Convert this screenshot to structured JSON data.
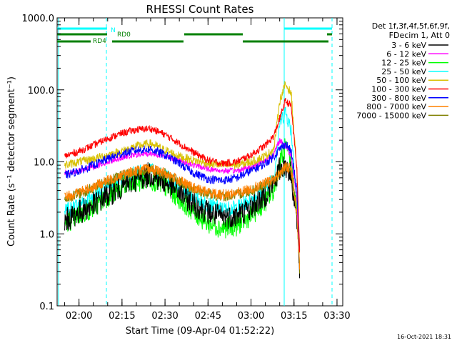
{
  "chart_data": {
    "type": "line",
    "title": "RHESSI Count Rates",
    "xlabel": "Start Time (09-Apr-04 01:52:22)",
    "ylabel": "Count Rate (s⁻¹ detector segment⁻¹)",
    "ylog": true,
    "ylim": [
      0.1,
      1000
    ],
    "xlim": [
      "01:52:22",
      "03:32:00"
    ],
    "x_ticks": [
      "02:00",
      "02:15",
      "02:30",
      "02:45",
      "03:00",
      "03:15",
      "03:30"
    ],
    "y_ticks": [
      "0.1",
      "1.0",
      "10.0",
      "100.0",
      "1000.0"
    ],
    "grid": false,
    "legend_position": "right",
    "legend_header": [
      "Det 1f,3f,4f,5f,6f,9f,",
      "FDecim 1, Att 0"
    ],
    "x": [
      "01:55",
      "02:00",
      "02:05",
      "02:10",
      "02:15",
      "02:20",
      "02:25",
      "02:30",
      "02:35",
      "02:40",
      "02:45",
      "02:50",
      "02:55",
      "03:00",
      "03:05",
      "03:08",
      "03:10",
      "03:12",
      "03:14",
      "03:16",
      "03:17"
    ],
    "series": [
      {
        "name": "3 - 6 keV",
        "color": "#000000",
        "values": [
          1.5,
          2.0,
          2.5,
          3.5,
          4.5,
          5.8,
          6.8,
          5.2,
          3.8,
          2.6,
          2.0,
          1.7,
          1.8,
          2.3,
          3.5,
          5.0,
          8.0,
          9.0,
          6.5,
          1.5,
          0.3
        ]
      },
      {
        "name": "6 - 12 keV",
        "color": "#ff00ff",
        "values": [
          7.0,
          7.5,
          8.5,
          10.0,
          11.5,
          12.5,
          13.0,
          12.0,
          10.5,
          9.0,
          8.0,
          7.5,
          7.5,
          8.5,
          10.5,
          13.0,
          20.0,
          17.0,
          12.0,
          3.0,
          0.5
        ]
      },
      {
        "name": "12 - 25 keV",
        "color": "#00ff00",
        "values": [
          1.4,
          1.8,
          2.3,
          3.3,
          4.3,
          5.2,
          5.8,
          4.5,
          3.1,
          2.0,
          1.4,
          1.2,
          1.3,
          1.8,
          2.8,
          4.0,
          10.0,
          16.0,
          9.0,
          2.0,
          0.3
        ]
      },
      {
        "name": "25 - 50 keV",
        "color": "#00ffff",
        "values": [
          2.0,
          2.6,
          3.4,
          4.6,
          5.9,
          7.0,
          7.6,
          6.3,
          4.6,
          3.3,
          2.6,
          2.2,
          2.3,
          3.0,
          4.4,
          6.0,
          35.0,
          50.0,
          28.0,
          3.0,
          0.3
        ]
      },
      {
        "name": "50 - 100 keV",
        "color": "#d8c000",
        "values": [
          9.0,
          10.0,
          11.0,
          12.5,
          14.0,
          16.5,
          18.0,
          14.5,
          12.0,
          10.5,
          9.5,
          9.0,
          9.0,
          10.0,
          12.0,
          15.0,
          70.0,
          120.0,
          90.0,
          8.0,
          0.5
        ]
      },
      {
        "name": "100 - 300 keV",
        "color": "#ff0000",
        "values": [
          12.0,
          14.0,
          17.0,
          21.0,
          25.0,
          28.0,
          29.0,
          24.0,
          18.0,
          13.5,
          10.5,
          9.5,
          10.0,
          12.5,
          17.0,
          23.0,
          40.0,
          70.0,
          60.0,
          8.0,
          0.5
        ]
      },
      {
        "name": "300 - 800 keV",
        "color": "#0000ff",
        "values": [
          6.5,
          7.5,
          9.0,
          11.0,
          13.0,
          14.5,
          15.0,
          12.5,
          9.5,
          7.0,
          5.8,
          5.5,
          6.0,
          7.5,
          9.5,
          12.0,
          15.0,
          18.0,
          14.0,
          4.0,
          0.5
        ]
      },
      {
        "name": "800 - 7000 keV",
        "color": "#ff8000",
        "values": [
          3.2,
          3.8,
          4.5,
          5.5,
          6.6,
          7.6,
          8.0,
          7.0,
          5.5,
          4.3,
          3.8,
          3.5,
          3.7,
          4.2,
          5.0,
          5.8,
          7.0,
          8.5,
          8.0,
          2.0,
          0.3
        ]
      },
      {
        "name": "7000 - 15000 keV",
        "color": "#808000",
        "values": [
          3.0,
          3.6,
          4.3,
          5.3,
          6.4,
          7.4,
          7.8,
          6.8,
          5.3,
          4.1,
          3.6,
          3.3,
          3.5,
          4.0,
          4.8,
          5.6,
          6.8,
          8.2,
          7.6,
          1.8,
          0.3
        ]
      }
    ],
    "annotations": [
      {
        "label": "N",
        "color": "#00ffff"
      },
      {
        "label": "RD0",
        "color": "#008000"
      },
      {
        "label": "RD4",
        "color": "#008000"
      }
    ],
    "timestamp": "16-Oct-2021 18:31"
  }
}
